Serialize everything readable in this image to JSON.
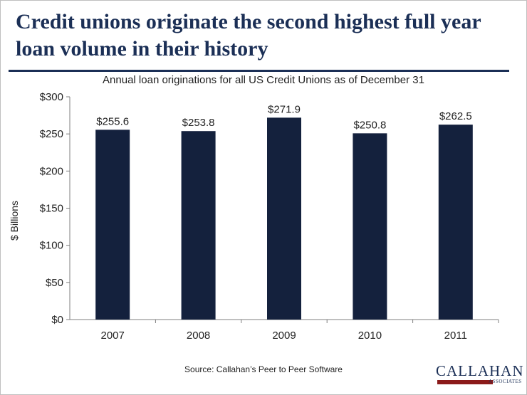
{
  "header": {
    "title": "Credit unions originate the second highest full year loan volume in their history"
  },
  "chart_data": {
    "type": "bar",
    "title": "Annual loan originations for all US Credit Unions as of December 31",
    "xlabel": "",
    "ylabel": "$ Billions",
    "categories": [
      "2007",
      "2008",
      "2009",
      "2010",
      "2011"
    ],
    "values": [
      255.6,
      253.8,
      271.9,
      250.8,
      262.5
    ],
    "data_labels": [
      "$255.6",
      "$253.8",
      "$271.9",
      "$250.8",
      "$262.5"
    ],
    "ylim": [
      0,
      300
    ],
    "y_ticks": [
      0,
      50,
      100,
      150,
      200,
      250,
      300
    ],
    "y_tick_labels": [
      "$0",
      "$50",
      "$100",
      "$150",
      "$200",
      "$250",
      "$300"
    ],
    "grid": false,
    "legend": "none",
    "bar_color": "#14213d"
  },
  "footer": {
    "source": "Source: Callahan’s Peer to Peer Software",
    "logo_text": "CALLAHAN",
    "logo_subtext": "ASSOCIATES"
  },
  "colors": {
    "title": "#1b2f56",
    "rule": "#1b2f56",
    "logo_bar": "#8b1a1a"
  }
}
